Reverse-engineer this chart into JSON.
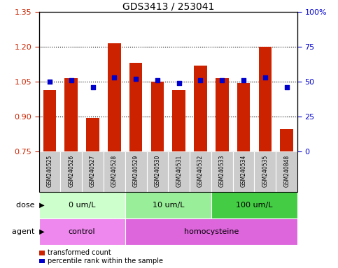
{
  "title": "GDS3413 / 253041",
  "samples": [
    "GSM240525",
    "GSM240526",
    "GSM240527",
    "GSM240528",
    "GSM240529",
    "GSM240530",
    "GSM240531",
    "GSM240532",
    "GSM240533",
    "GSM240534",
    "GSM240535",
    "GSM240848"
  ],
  "transformed_counts": [
    1.015,
    1.065,
    0.895,
    1.215,
    1.13,
    1.05,
    1.015,
    1.12,
    1.065,
    1.045,
    1.2,
    0.845
  ],
  "percentile_ranks": [
    50,
    51,
    46,
    53,
    52,
    51,
    49,
    51,
    51,
    51,
    53,
    46
  ],
  "dose_groups": [
    {
      "label": "0 um/L",
      "start": 0,
      "end": 4,
      "color": "#ccffcc"
    },
    {
      "label": "10 um/L",
      "start": 4,
      "end": 8,
      "color": "#99ee99"
    },
    {
      "label": "100 um/L",
      "start": 8,
      "end": 12,
      "color": "#44cc44"
    }
  ],
  "agent_groups": [
    {
      "label": "control",
      "start": 0,
      "end": 4,
      "color": "#ee88ee"
    },
    {
      "label": "homocysteine",
      "start": 4,
      "end": 12,
      "color": "#dd66dd"
    }
  ],
  "ylim_left": [
    0.75,
    1.35
  ],
  "ylim_right": [
    0,
    100
  ],
  "yticks_left": [
    0.75,
    0.9,
    1.05,
    1.2,
    1.35
  ],
  "yticks_right": [
    0,
    25,
    50,
    75,
    100
  ],
  "bar_color": "#cc2200",
  "dot_color": "#0000cc",
  "left_tick_color": "#cc2200",
  "right_tick_color": "#0000cc",
  "sample_bg_color": "#cccccc",
  "legend_red_color": "#cc2200",
  "legend_blue_color": "#0000cc"
}
